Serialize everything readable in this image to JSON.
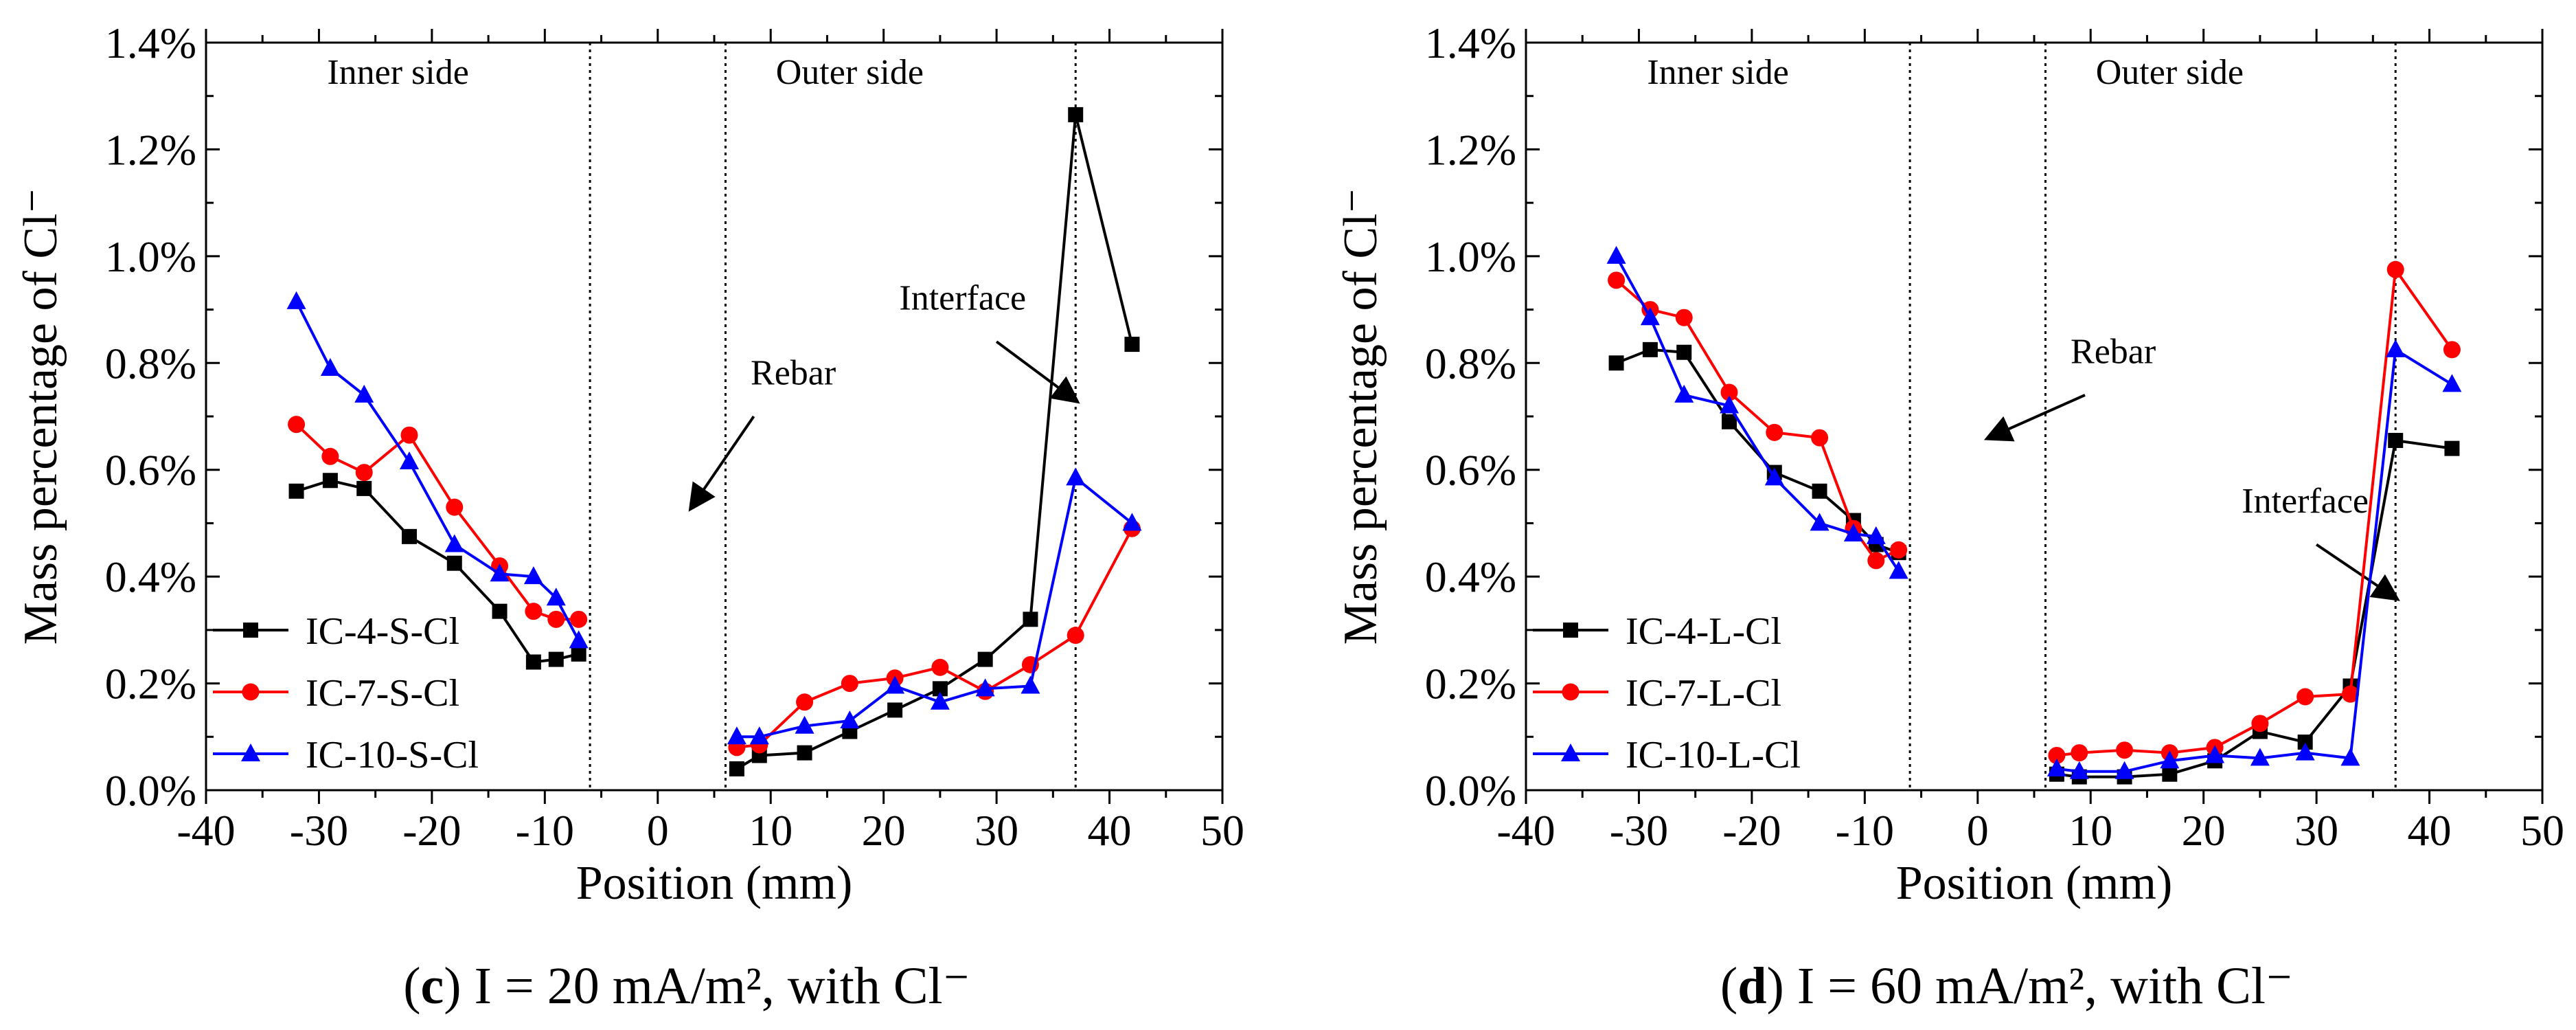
{
  "chart_data": [
    {
      "type": "line",
      "panel_letter": "c",
      "caption_rest": " I = 20 mA/m², with Cl⁻",
      "xlabel": "Position (mm)",
      "ylabel": "Mass percentage of Cl⁻",
      "xlim": [
        -40,
        50
      ],
      "ylim": [
        0,
        1.4
      ],
      "xticks": [
        -40,
        -30,
        -20,
        -10,
        0,
        10,
        20,
        30,
        40,
        50
      ],
      "xtick_labels": [
        "-40",
        "-30",
        "-20",
        "-10",
        "0",
        "10",
        "20",
        "30",
        "40",
        "50"
      ],
      "yticks": [
        0,
        0.2,
        0.4,
        0.6,
        0.8,
        1.0,
        1.2,
        1.4
      ],
      "ytick_labels": [
        "0.0%",
        "0.2%",
        "0.4%",
        "0.6%",
        "0.8%",
        "1.0%",
        "1.2%",
        "1.4%"
      ],
      "vlines": [
        -6,
        6,
        37
      ],
      "regions": [
        {
          "label": "Inner side",
          "x": -23
        },
        {
          "label": "Outer side",
          "x": 17
        }
      ],
      "annotations": [
        {
          "text": "Rebar",
          "text_x": 12,
          "text_y": 0.76,
          "arrow_from": [
            8.5,
            0.7
          ],
          "arrow_to": [
            3,
            0.53
          ]
        },
        {
          "text": "Interface",
          "text_x": 27,
          "text_y": 0.9,
          "arrow_from": [
            30,
            0.84
          ],
          "arrow_to": [
            37,
            0.73
          ]
        }
      ],
      "legend_position": "bottom-left",
      "series": [
        {
          "name": "IC-4-S-Cl",
          "color": "#000000",
          "marker": "square",
          "segments": [
            {
              "x": [
                -32,
                -29,
                -26,
                -22,
                -18,
                -14,
                -11,
                -9,
                -7
              ],
              "y": [
                0.56,
                0.58,
                0.565,
                0.475,
                0.425,
                0.335,
                0.24,
                0.245,
                0.255
              ]
            },
            {
              "x": [
                7,
                9,
                13,
                17,
                21,
                25,
                29,
                33,
                37,
                42
              ],
              "y": [
                0.04,
                0.065,
                0.07,
                0.11,
                0.15,
                0.19,
                0.245,
                0.32,
                1.265,
                0.835
              ]
            }
          ]
        },
        {
          "name": "IC-7-S-Cl",
          "color": "#ff0000",
          "marker": "circle",
          "segments": [
            {
              "x": [
                -32,
                -29,
                -26,
                -22,
                -18,
                -14,
                -11,
                -9,
                -7
              ],
              "y": [
                0.685,
                0.625,
                0.595,
                0.665,
                0.53,
                0.42,
                0.335,
                0.32,
                0.32
              ]
            },
            {
              "x": [
                7,
                9,
                13,
                17,
                21,
                25,
                29,
                33,
                37,
                42
              ],
              "y": [
                0.08,
                0.085,
                0.165,
                0.2,
                0.21,
                0.23,
                0.185,
                0.235,
                0.29,
                0.49
              ]
            }
          ]
        },
        {
          "name": "IC-10-S-Cl",
          "color": "#0000ff",
          "marker": "triangle",
          "segments": [
            {
              "x": [
                -32,
                -29,
                -26,
                -22,
                -18,
                -14,
                -11,
                -9,
                -7
              ],
              "y": [
                0.915,
                0.79,
                0.74,
                0.615,
                0.46,
                0.405,
                0.4,
                0.36,
                0.28
              ]
            },
            {
              "x": [
                7,
                9,
                13,
                17,
                21,
                25,
                29,
                33,
                37,
                42
              ],
              "y": [
                0.1,
                0.1,
                0.12,
                0.13,
                0.195,
                0.165,
                0.19,
                0.195,
                0.585,
                0.5
              ]
            }
          ]
        }
      ]
    },
    {
      "type": "line",
      "panel_letter": "d",
      "caption_rest": " I = 60 mA/m², with Cl⁻",
      "xlabel": "Position (mm)",
      "ylabel": "Mass percentage of Cl⁻",
      "xlim": [
        -40,
        50
      ],
      "ylim": [
        0,
        1.4
      ],
      "xticks": [
        -40,
        -30,
        -20,
        -10,
        0,
        10,
        20,
        30,
        40,
        50
      ],
      "xtick_labels": [
        "-40",
        "-30",
        "-20",
        "-10",
        "0",
        "10",
        "20",
        "30",
        "40",
        "50"
      ],
      "yticks": [
        0,
        0.2,
        0.4,
        0.6,
        0.8,
        1.0,
        1.2,
        1.4
      ],
      "ytick_labels": [
        "0.0%",
        "0.2%",
        "0.4%",
        "0.6%",
        "0.8%",
        "1.0%",
        "1.2%",
        "1.4%"
      ],
      "vlines": [
        -6,
        6,
        37
      ],
      "regions": [
        {
          "label": "Inner side",
          "x": -23
        },
        {
          "label": "Outer side",
          "x": 17
        }
      ],
      "annotations": [
        {
          "text": "Rebar",
          "text_x": 12,
          "text_y": 0.8,
          "arrow_from": [
            9.5,
            0.74
          ],
          "arrow_to": [
            1,
            0.66
          ]
        },
        {
          "text": "Interface",
          "text_x": 29,
          "text_y": 0.52,
          "arrow_from": [
            30,
            0.46
          ],
          "arrow_to": [
            37,
            0.36
          ]
        }
      ],
      "legend_position": "bottom-left",
      "series": [
        {
          "name": "IC-4-L-Cl",
          "color": "#000000",
          "marker": "square",
          "segments": [
            {
              "x": [
                -32,
                -29,
                -26,
                -22,
                -18,
                -14,
                -11,
                -9,
                -7
              ],
              "y": [
                0.8,
                0.825,
                0.82,
                0.69,
                0.595,
                0.56,
                0.505,
                0.46,
                0.445
              ]
            },
            {
              "x": [
                7,
                9,
                13,
                17,
                21,
                25,
                29,
                33,
                37,
                42
              ],
              "y": [
                0.03,
                0.025,
                0.025,
                0.03,
                0.055,
                0.11,
                0.09,
                0.195,
                0.655,
                0.64
              ]
            }
          ]
        },
        {
          "name": "IC-7-L-Cl",
          "color": "#ff0000",
          "marker": "circle",
          "segments": [
            {
              "x": [
                -32,
                -29,
                -26,
                -22,
                -18,
                -14,
                -11,
                -9,
                -7
              ],
              "y": [
                0.955,
                0.9,
                0.885,
                0.745,
                0.67,
                0.66,
                0.49,
                0.43,
                0.45
              ]
            },
            {
              "x": [
                7,
                9,
                13,
                17,
                21,
                25,
                29,
                33,
                37,
                42
              ],
              "y": [
                0.065,
                0.07,
                0.075,
                0.07,
                0.08,
                0.125,
                0.175,
                0.18,
                0.975,
                0.825
              ]
            }
          ]
        },
        {
          "name": "IC-10-L-Cl",
          "color": "#0000ff",
          "marker": "triangle",
          "segments": [
            {
              "x": [
                -32,
                -29,
                -26,
                -22,
                -18,
                -14,
                -11,
                -9,
                -7
              ],
              "y": [
                1.0,
                0.885,
                0.74,
                0.72,
                0.585,
                0.5,
                0.48,
                0.475,
                0.41
              ]
            },
            {
              "x": [
                7,
                9,
                13,
                17,
                21,
                25,
                29,
                33,
                37,
                42
              ],
              "y": [
                0.04,
                0.035,
                0.035,
                0.055,
                0.065,
                0.06,
                0.07,
                0.06,
                0.825,
                0.76
              ]
            }
          ]
        }
      ]
    }
  ]
}
